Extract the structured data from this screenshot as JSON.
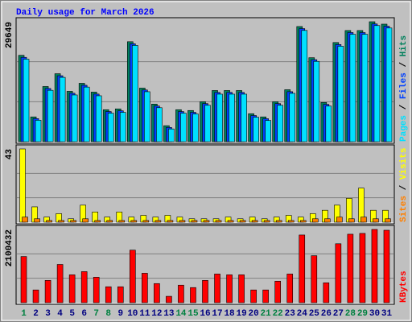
{
  "chart_data": [
    {
      "type": "bar",
      "title": "Daily usage for March 2026",
      "categories": [
        "1",
        "2",
        "3",
        "4",
        "5",
        "6",
        "7",
        "8",
        "9",
        "10",
        "11",
        "12",
        "13",
        "14",
        "15",
        "16",
        "17",
        "18",
        "19",
        "20",
        "21",
        "22",
        "23",
        "24",
        "25",
        "26",
        "27",
        "28",
        "29",
        "30",
        "31"
      ],
      "ylim": [
        0,
        29649
      ],
      "yticks": [
        29649
      ],
      "legend_separator": " / ",
      "series": [
        {
          "name": "Hits",
          "color": "#00805c",
          "values": [
            21347,
            6127,
            13639,
            16801,
            12453,
            14429,
            12255,
            7906,
            8104,
            24708,
            13243,
            9290,
            3953,
            7906,
            7709,
            9883,
            12650,
            12650,
            12650,
            6918,
            6127,
            9883,
            12848,
            28463,
            20754,
            9685,
            24510,
            27475,
            27475,
            29649,
            29056
          ]
        },
        {
          "name": "Files",
          "color": "#0040ff",
          "values": [
            20850,
            5700,
            13150,
            16300,
            11980,
            13940,
            11770,
            7450,
            7640,
            24200,
            12780,
            8820,
            3520,
            7450,
            7260,
            9410,
            12170,
            12180,
            12170,
            6460,
            5680,
            9410,
            12360,
            27950,
            20270,
            9220,
            24010,
            26980,
            26970,
            29100,
            28540
          ]
        },
        {
          "name": "Pages",
          "color": "#00e0ff",
          "values": [
            20400,
            5300,
            12700,
            15900,
            11550,
            13500,
            11350,
            7050,
            7250,
            23800,
            12350,
            8400,
            3150,
            7050,
            6850,
            9000,
            11750,
            11750,
            11750,
            6050,
            5250,
            9000,
            11950,
            27500,
            19850,
            8800,
            23600,
            26550,
            26550,
            28700,
            28100
          ]
        }
      ]
    },
    {
      "type": "bar",
      "categories": [
        "1",
        "2",
        "3",
        "4",
        "5",
        "6",
        "7",
        "8",
        "9",
        "10",
        "11",
        "12",
        "13",
        "14",
        "15",
        "16",
        "17",
        "18",
        "19",
        "20",
        "21",
        "22",
        "23",
        "24",
        "25",
        "26",
        "27",
        "28",
        "29",
        "30",
        "31"
      ],
      "ylim": [
        0,
        43
      ],
      "yticks": [
        43
      ],
      "legend_separator": " / ",
      "series": [
        {
          "name": "Visits",
          "color": "#ffff00",
          "values": [
            43,
            9,
            3,
            5,
            2,
            10,
            6,
            3,
            6,
            3,
            4,
            3,
            4,
            3,
            2,
            2,
            2,
            3,
            2,
            3,
            2,
            3,
            4,
            3,
            5,
            7,
            10,
            14,
            20,
            7,
            7
          ]
        },
        {
          "name": "Sites",
          "color": "#ff8000",
          "values": [
            3,
            2,
            1,
            1,
            1,
            2,
            1,
            1,
            1,
            1,
            1,
            1,
            1,
            1,
            1,
            1,
            1,
            1,
            1,
            1,
            1,
            1,
            1,
            1,
            2,
            2,
            3,
            2,
            3,
            2,
            2
          ]
        }
      ]
    },
    {
      "type": "bar",
      "categories": [
        "1",
        "2",
        "3",
        "4",
        "5",
        "6",
        "7",
        "8",
        "9",
        "10",
        "11",
        "12",
        "13",
        "14",
        "15",
        "16",
        "17",
        "18",
        "19",
        "20",
        "21",
        "22",
        "23",
        "24",
        "25",
        "26",
        "27",
        "28",
        "29",
        "30",
        "31"
      ],
      "category_colors": [
        "#008040",
        "#000080",
        "#000080",
        "#000080",
        "#000080",
        "#000080",
        "#008040",
        "#008040",
        "#000080",
        "#000080",
        "#000080",
        "#000080",
        "#000080",
        "#008040",
        "#008040",
        "#000080",
        "#000080",
        "#000080",
        "#000080",
        "#000080",
        "#008040",
        "#008040",
        "#000080",
        "#000080",
        "#000080",
        "#000080",
        "#000080",
        "#008040",
        "#008040",
        "#000080",
        "#000080"
      ],
      "ylim": [
        0,
        2100432
      ],
      "yticks": [
        2100432
      ],
      "series": [
        {
          "name": "KBytes",
          "color": "#ff0000",
          "values": [
            1324185,
            365293,
            639262,
            1095878,
            799077,
            890400,
            730585,
            456616,
            456616,
            1506832,
            844739,
            547939,
            182646,
            502277,
            433785,
            639262,
            821908,
            799077,
            799077,
            365293,
            365293,
            616431,
            821908,
            1940616,
            1347016,
            570770,
            1689478,
            1963447,
            1986278,
            2100432,
            2077601
          ]
        }
      ]
    }
  ]
}
